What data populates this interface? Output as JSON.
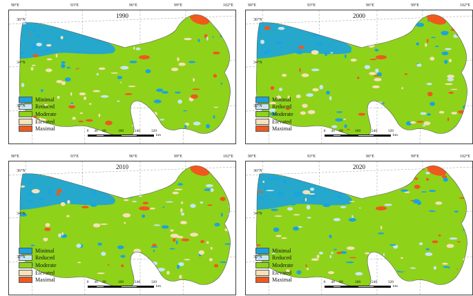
{
  "panels": [
    {
      "year": "1990"
    },
    {
      "year": "2000"
    },
    {
      "year": "2010"
    },
    {
      "year": "2020"
    }
  ],
  "longitude_ticks": [
    "90°E",
    "93°E",
    "96°E",
    "99°E",
    "102°E"
  ],
  "latitude_ticks": [
    "36°N",
    "34°N",
    "32°N"
  ],
  "legend": [
    {
      "label": "Minimal",
      "color": "#1aa3e0"
    },
    {
      "label": "Reduced",
      "color": "#c7e6f5"
    },
    {
      "label": "Moderate",
      "color": "#8fd21a"
    },
    {
      "label": "Elevated",
      "color": "#f6e2b5"
    },
    {
      "label": "Maximal",
      "color": "#f0581d"
    }
  ],
  "scale_bar": {
    "ticks": [
      "0",
      "40",
      "80",
      "160",
      "240",
      "320"
    ],
    "unit": "km"
  }
}
